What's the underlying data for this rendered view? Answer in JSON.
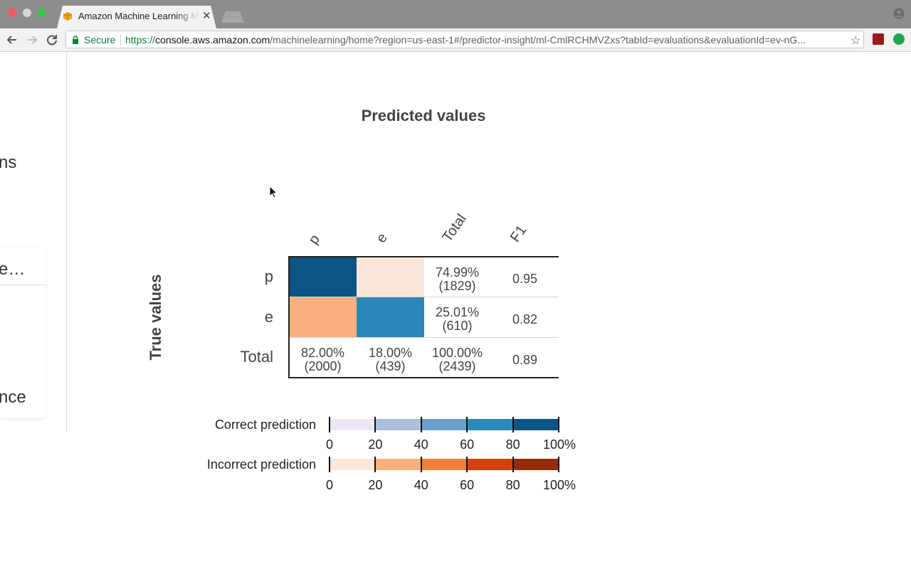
{
  "browser": {
    "tab_title": "Amazon Machine Learning Management Console",
    "secure_label": "Secure",
    "url_scheme": "https://",
    "url_host": "console.aws.amazon.com",
    "url_path": "/machinelearning/home?region=us-east-1#/predictor-insight/ml-CmlRCHMVZxs?tabId=evaluations&evaluationId=ev-nG..."
  },
  "sidebar": {
    "fragments": [
      "ns",
      "e…",
      "nce"
    ]
  },
  "matrix": {
    "predicted_title": "Predicted values",
    "true_title": "True values",
    "column_headers": [
      "p",
      "e",
      "Total",
      "F1"
    ],
    "row_headers": [
      "p",
      "e",
      "Total"
    ],
    "cell_colors": {
      "p_p": "#0a5486",
      "p_e": "#fce6d9",
      "e_p": "#f9b07e",
      "e_e": "#2b88b8"
    },
    "cells": {
      "p_total_pct": "74.99%",
      "p_total_count": "(1829)",
      "p_f1": "0.95",
      "e_total_pct": "25.01%",
      "e_total_count": "(610)",
      "e_f1": "0.82",
      "total_p_pct": "82.00%",
      "total_p_count": "(2000)",
      "total_e_pct": "18.00%",
      "total_e_count": "(439)",
      "total_total_pct": "100.00%",
      "total_total_count": "(2439)",
      "total_f1": "0.89"
    }
  },
  "legend": {
    "correct_label": "Correct prediction",
    "incorrect_label": "Incorrect prediction",
    "ticks": [
      "0",
      "20",
      "40",
      "60",
      "80",
      "100%"
    ],
    "correct_colors": [
      "#ece7f2",
      "#aebfdc",
      "#6a9fca",
      "#2b88b8",
      "#0a5486"
    ],
    "incorrect_colors": [
      "#fce6d9",
      "#f9b07e",
      "#f07f3c",
      "#d5420f",
      "#952c0b"
    ]
  }
}
